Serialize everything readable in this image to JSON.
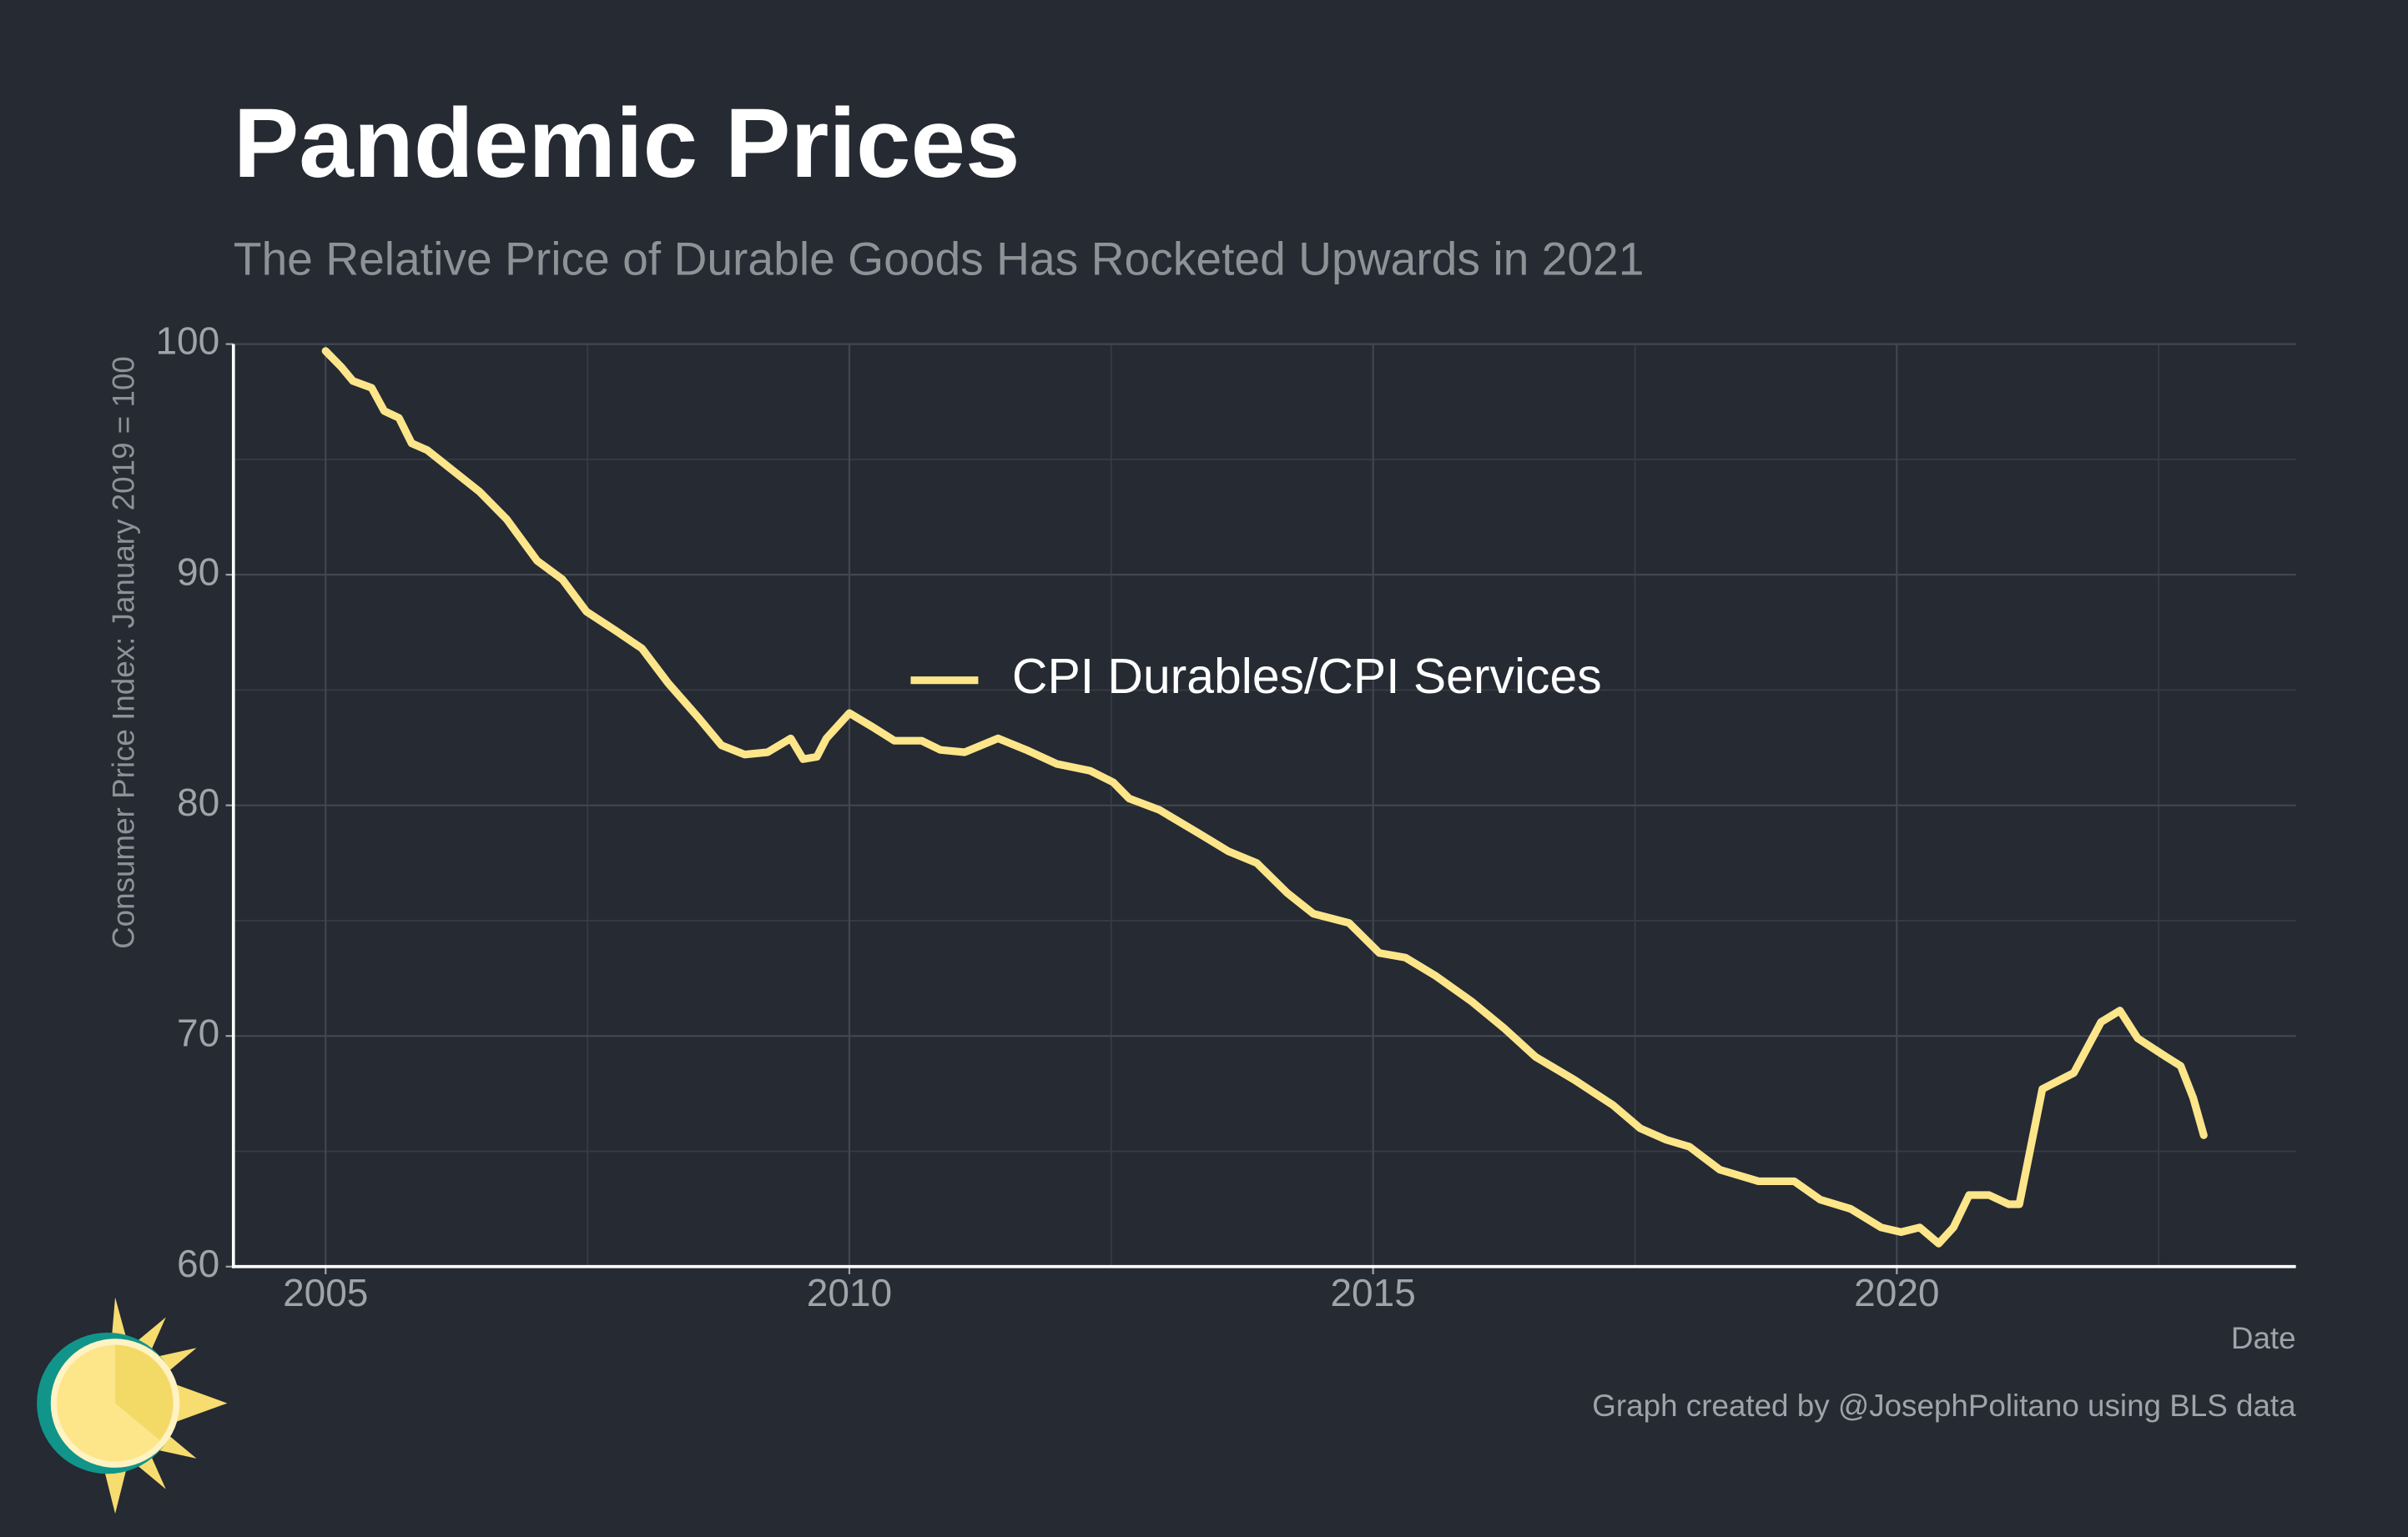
{
  "chart_data": {
    "type": "line",
    "title": "Pandemic Prices",
    "subtitle": "The Relative Price of Durable Goods Has Rocketed Upwards in 2021",
    "y_label": "Consumer Price Index: January 2019 = 100",
    "x_label": "Date",
    "caption": "Graph created by @JosephPolitano using BLS data",
    "x": [
      2005.0,
      2005.15,
      2005.26,
      2005.44,
      2005.56,
      2005.7,
      2005.82,
      2005.97,
      2006.22,
      2006.47,
      2006.73,
      2007.02,
      2007.26,
      2007.49,
      2007.76,
      2008.02,
      2008.27,
      2008.56,
      2008.78,
      2009.0,
      2009.22,
      2009.44,
      2009.56,
      2009.69,
      2009.78,
      2010.0,
      2010.22,
      2010.43,
      2010.69,
      2010.87,
      2011.1,
      2011.42,
      2011.69,
      2011.98,
      2012.3,
      2012.52,
      2012.67,
      2012.96,
      2013.33,
      2013.62,
      2013.89,
      2014.18,
      2014.43,
      2014.77,
      2015.06,
      2015.31,
      2015.6,
      2015.94,
      2016.26,
      2016.55,
      2016.92,
      2017.29,
      2017.55,
      2017.8,
      2018.02,
      2018.31,
      2018.68,
      2019.02,
      2019.27,
      2019.56,
      2019.85,
      2020.04,
      2020.22,
      2020.4,
      2020.54,
      2020.69,
      2020.88,
      2021.07,
      2021.17,
      2021.39,
      2021.69,
      2021.95,
      2022.13,
      2022.3,
      2022.57,
      2022.71,
      2022.83,
      2022.93
    ],
    "series": [
      {
        "name": "CPI Durables/CPI Services",
        "color": "#fde58a",
        "values": [
          99.7,
          99.0,
          98.4,
          98.1,
          97.1,
          96.8,
          95.7,
          95.4,
          94.5,
          93.6,
          92.4,
          90.6,
          89.8,
          88.4,
          87.6,
          86.8,
          85.3,
          83.8,
          82.6,
          82.2,
          82.3,
          82.9,
          82.0,
          82.1,
          82.9,
          84.0,
          83.4,
          82.8,
          82.8,
          82.4,
          82.3,
          82.9,
          82.4,
          81.8,
          81.5,
          81.0,
          80.3,
          79.8,
          78.8,
          78.0,
          77.5,
          76.2,
          75.3,
          74.9,
          73.6,
          73.4,
          72.6,
          71.5,
          70.3,
          69.1,
          68.1,
          67.0,
          66.0,
          65.5,
          65.2,
          64.2,
          63.7,
          63.7,
          62.9,
          62.5,
          61.7,
          61.5,
          61.7,
          61.0,
          61.7,
          63.1,
          63.1,
          62.7,
          62.7,
          67.7,
          68.4,
          70.6,
          71.1,
          69.9,
          69.1,
          68.7,
          67.3,
          65.7
        ]
      }
    ],
    "xlim": [
      2004.12,
      2023.81
    ],
    "ylim": [
      60,
      100
    ],
    "xticks": [
      2005,
      2010,
      2015,
      2020
    ],
    "yticks": [
      60,
      70,
      80,
      90,
      100
    ],
    "x_minor_ticks": [
      2007.5,
      2012.5,
      2017.5,
      2022.5
    ],
    "y_minor_ticks": [
      65,
      75,
      85,
      95
    ],
    "grid": true,
    "legend": "center"
  }
}
